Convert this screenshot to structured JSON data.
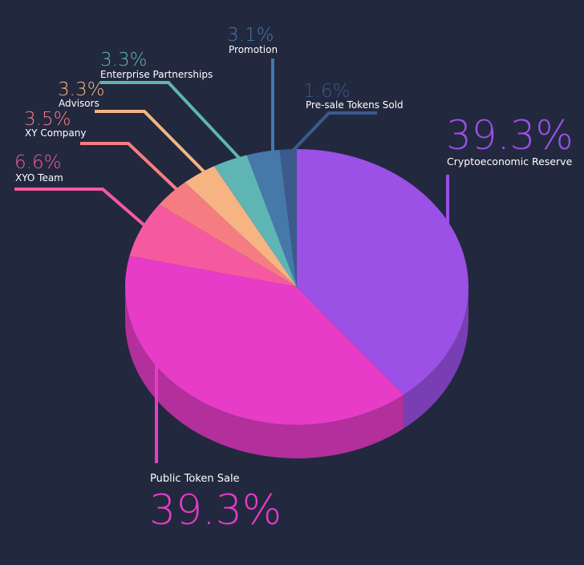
{
  "chart_data": {
    "type": "pie",
    "title": "",
    "slices": [
      {
        "label": "Cryptoeconomic Reserve",
        "value": 39.3,
        "value_label": "39.3%",
        "color": "#9b50e6"
      },
      {
        "label": "Public Token Sale",
        "value": 39.3,
        "value_label": "39.3%",
        "color": "#e63cc8"
      },
      {
        "label": "XYO Team",
        "value": 6.6,
        "value_label": "6.6%",
        "color": "#f55aa0"
      },
      {
        "label": "XY Company",
        "value": 3.5,
        "value_label": "3.5%",
        "color": "#f57d82"
      },
      {
        "label": "Advisors",
        "value": 3.3,
        "value_label": "3.3%",
        "color": "#f5b482"
      },
      {
        "label": "Enterprise Partnerships",
        "value": 3.3,
        "value_label": "3.3%",
        "color": "#5fb4b4"
      },
      {
        "label": "Promotion",
        "value": 3.1,
        "value_label": "3.1%",
        "color": "#4678aa"
      },
      {
        "label": "Pre-sale Tokens Sold",
        "value": 1.6,
        "value_label": "1.6%",
        "color": "#3c5a8c"
      }
    ]
  }
}
